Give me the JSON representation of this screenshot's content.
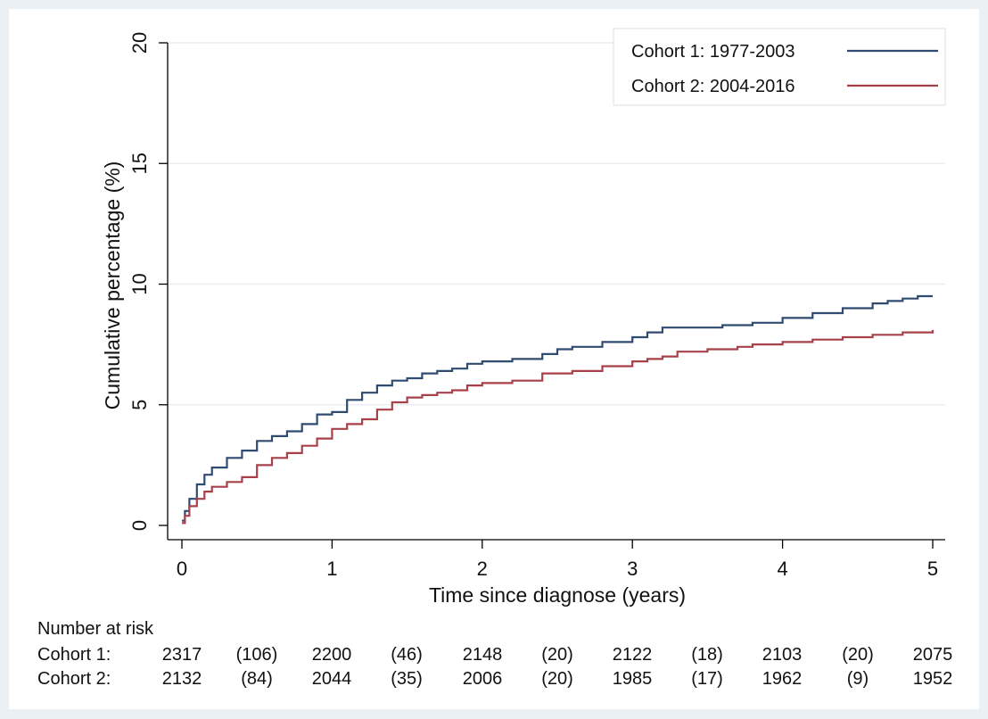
{
  "chart_data": {
    "type": "line",
    "title": "",
    "xlabel": "Time since diagnose (years)",
    "ylabel": "Cumulative percentage (%)",
    "xlim": [
      0,
      5
    ],
    "ylim": [
      0,
      20
    ],
    "x_ticks": [
      "0",
      "1",
      "2",
      "3",
      "4",
      "5"
    ],
    "y_ticks": [
      "0",
      "5",
      "10",
      "15",
      "20"
    ],
    "grid": true,
    "legend_position": "top-right",
    "step": true,
    "series": [
      {
        "name": "Cohort 1: 1977-2003",
        "color": "#2f4b70",
        "points": [
          [
            0,
            0.2
          ],
          [
            0.02,
            0.6
          ],
          [
            0.05,
            1.1
          ],
          [
            0.1,
            1.7
          ],
          [
            0.15,
            2.1
          ],
          [
            0.2,
            2.4
          ],
          [
            0.3,
            2.8
          ],
          [
            0.4,
            3.1
          ],
          [
            0.5,
            3.5
          ],
          [
            0.6,
            3.7
          ],
          [
            0.7,
            3.9
          ],
          [
            0.8,
            4.2
          ],
          [
            0.9,
            4.6
          ],
          [
            1.0,
            4.7
          ],
          [
            1.1,
            5.2
          ],
          [
            1.2,
            5.5
          ],
          [
            1.3,
            5.8
          ],
          [
            1.4,
            6.0
          ],
          [
            1.5,
            6.1
          ],
          [
            1.6,
            6.3
          ],
          [
            1.7,
            6.4
          ],
          [
            1.8,
            6.5
          ],
          [
            1.9,
            6.7
          ],
          [
            2.0,
            6.8
          ],
          [
            2.2,
            6.9
          ],
          [
            2.4,
            7.1
          ],
          [
            2.5,
            7.3
          ],
          [
            2.6,
            7.4
          ],
          [
            2.8,
            7.6
          ],
          [
            3.0,
            7.8
          ],
          [
            3.1,
            8.0
          ],
          [
            3.2,
            8.2
          ],
          [
            3.4,
            8.2
          ],
          [
            3.6,
            8.3
          ],
          [
            3.8,
            8.4
          ],
          [
            4.0,
            8.6
          ],
          [
            4.2,
            8.8
          ],
          [
            4.4,
            9.0
          ],
          [
            4.5,
            9.0
          ],
          [
            4.6,
            9.2
          ],
          [
            4.7,
            9.3
          ],
          [
            4.8,
            9.4
          ],
          [
            4.9,
            9.5
          ],
          [
            5.0,
            9.5
          ]
        ]
      },
      {
        "name": "Cohort 2: 2004-2016",
        "color": "#a8404a",
        "points": [
          [
            0,
            0.1
          ],
          [
            0.02,
            0.4
          ],
          [
            0.05,
            0.8
          ],
          [
            0.1,
            1.1
          ],
          [
            0.15,
            1.4
          ],
          [
            0.2,
            1.6
          ],
          [
            0.3,
            1.8
          ],
          [
            0.4,
            2.0
          ],
          [
            0.5,
            2.5
          ],
          [
            0.6,
            2.8
          ],
          [
            0.7,
            3.0
          ],
          [
            0.8,
            3.3
          ],
          [
            0.9,
            3.6
          ],
          [
            1.0,
            4.0
          ],
          [
            1.1,
            4.2
          ],
          [
            1.2,
            4.4
          ],
          [
            1.3,
            4.8
          ],
          [
            1.4,
            5.1
          ],
          [
            1.5,
            5.3
          ],
          [
            1.6,
            5.4
          ],
          [
            1.7,
            5.5
          ],
          [
            1.8,
            5.6
          ],
          [
            1.9,
            5.8
          ],
          [
            2.0,
            5.9
          ],
          [
            2.2,
            6.0
          ],
          [
            2.4,
            6.3
          ],
          [
            2.6,
            6.4
          ],
          [
            2.8,
            6.6
          ],
          [
            3.0,
            6.8
          ],
          [
            3.1,
            6.9
          ],
          [
            3.2,
            7.0
          ],
          [
            3.3,
            7.2
          ],
          [
            3.5,
            7.3
          ],
          [
            3.7,
            7.4
          ],
          [
            3.8,
            7.5
          ],
          [
            4.0,
            7.6
          ],
          [
            4.2,
            7.7
          ],
          [
            4.4,
            7.8
          ],
          [
            4.6,
            7.9
          ],
          [
            4.8,
            8.0
          ],
          [
            5.0,
            8.1
          ]
        ]
      }
    ],
    "risk_table": {
      "title": "Number at risk",
      "rows": [
        {
          "label": "Cohort 1:",
          "values": [
            "2317",
            "(106)",
            "2200",
            "(46)",
            "2148",
            "(20)",
            "2122",
            "(18)",
            "2103",
            "(20)",
            "2075"
          ]
        },
        {
          "label": "Cohort 2:",
          "values": [
            "2132",
            "(84)",
            "2044",
            "(35)",
            "2006",
            "(20)",
            "1985",
            "(17)",
            "1962",
            "(9)",
            "1952"
          ]
        }
      ]
    }
  }
}
